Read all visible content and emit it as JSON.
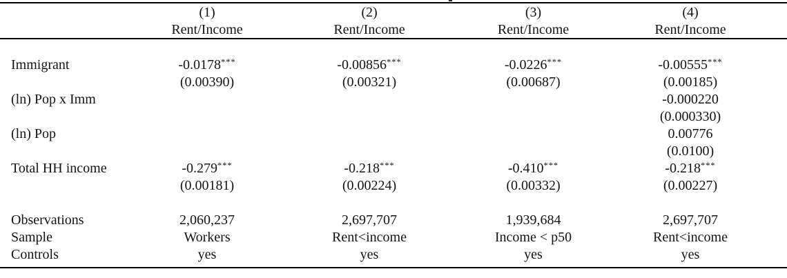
{
  "page": {
    "background_color": "#ffffff",
    "text_color": "#141414",
    "rule_color": "#000000"
  },
  "table": {
    "header": {
      "col_numbers": [
        "(1)",
        "(2)",
        "(3)",
        "(4)"
      ],
      "dep_vars": [
        "Rent/Income",
        "Rent/Income",
        "Rent/Income",
        "Rent/Income"
      ]
    },
    "body": [
      {
        "label": "Immigrant",
        "cells": [
          {
            "v": "-0.0178",
            "s": "***"
          },
          {
            "v": "-0.00856",
            "s": "***"
          },
          {
            "v": "-0.0226",
            "s": "***"
          },
          {
            "v": "-0.00555",
            "s": "***"
          }
        ]
      },
      {
        "label": "",
        "cells": [
          {
            "v": "(0.00390)",
            "s": ""
          },
          {
            "v": "(0.00321)",
            "s": ""
          },
          {
            "v": "(0.00687)",
            "s": ""
          },
          {
            "v": "(0.00185)",
            "s": ""
          }
        ]
      },
      {
        "label": "(ln) Pop x Imm",
        "cells": [
          {
            "v": "",
            "s": ""
          },
          {
            "v": "",
            "s": ""
          },
          {
            "v": "",
            "s": ""
          },
          {
            "v": "-0.000220",
            "s": ""
          }
        ]
      },
      {
        "label": "",
        "cells": [
          {
            "v": "",
            "s": ""
          },
          {
            "v": "",
            "s": ""
          },
          {
            "v": "",
            "s": ""
          },
          {
            "v": "(0.000330)",
            "s": ""
          }
        ]
      },
      {
        "label": "(ln) Pop",
        "cells": [
          {
            "v": "",
            "s": ""
          },
          {
            "v": "",
            "s": ""
          },
          {
            "v": "",
            "s": ""
          },
          {
            "v": "0.00776",
            "s": ""
          }
        ]
      },
      {
        "label": "",
        "cells": [
          {
            "v": "",
            "s": ""
          },
          {
            "v": "",
            "s": ""
          },
          {
            "v": "",
            "s": ""
          },
          {
            "v": "(0.0100)",
            "s": ""
          }
        ]
      },
      {
        "label": "Total HH income",
        "cells": [
          {
            "v": "-0.279",
            "s": "***"
          },
          {
            "v": "-0.218",
            "s": "***"
          },
          {
            "v": "-0.410",
            "s": "***"
          },
          {
            "v": "-0.218",
            "s": "***"
          }
        ]
      },
      {
        "label": "",
        "cells": [
          {
            "v": "(0.00181)",
            "s": ""
          },
          {
            "v": "(0.00224)",
            "s": ""
          },
          {
            "v": "(0.00332)",
            "s": ""
          },
          {
            "v": "(0.00227)",
            "s": ""
          }
        ]
      }
    ],
    "stats": [
      {
        "label": "Observations",
        "cells": [
          "2,060,237",
          "2,697,707",
          "1,939,684",
          "2,697,707"
        ]
      },
      {
        "label": "Sample",
        "cells": [
          "Workers",
          "Rent<income",
          "Income < p50",
          "Rent<income"
        ]
      },
      {
        "label": "Controls",
        "cells": [
          "yes",
          "yes",
          "yes",
          "yes"
        ]
      }
    ]
  }
}
